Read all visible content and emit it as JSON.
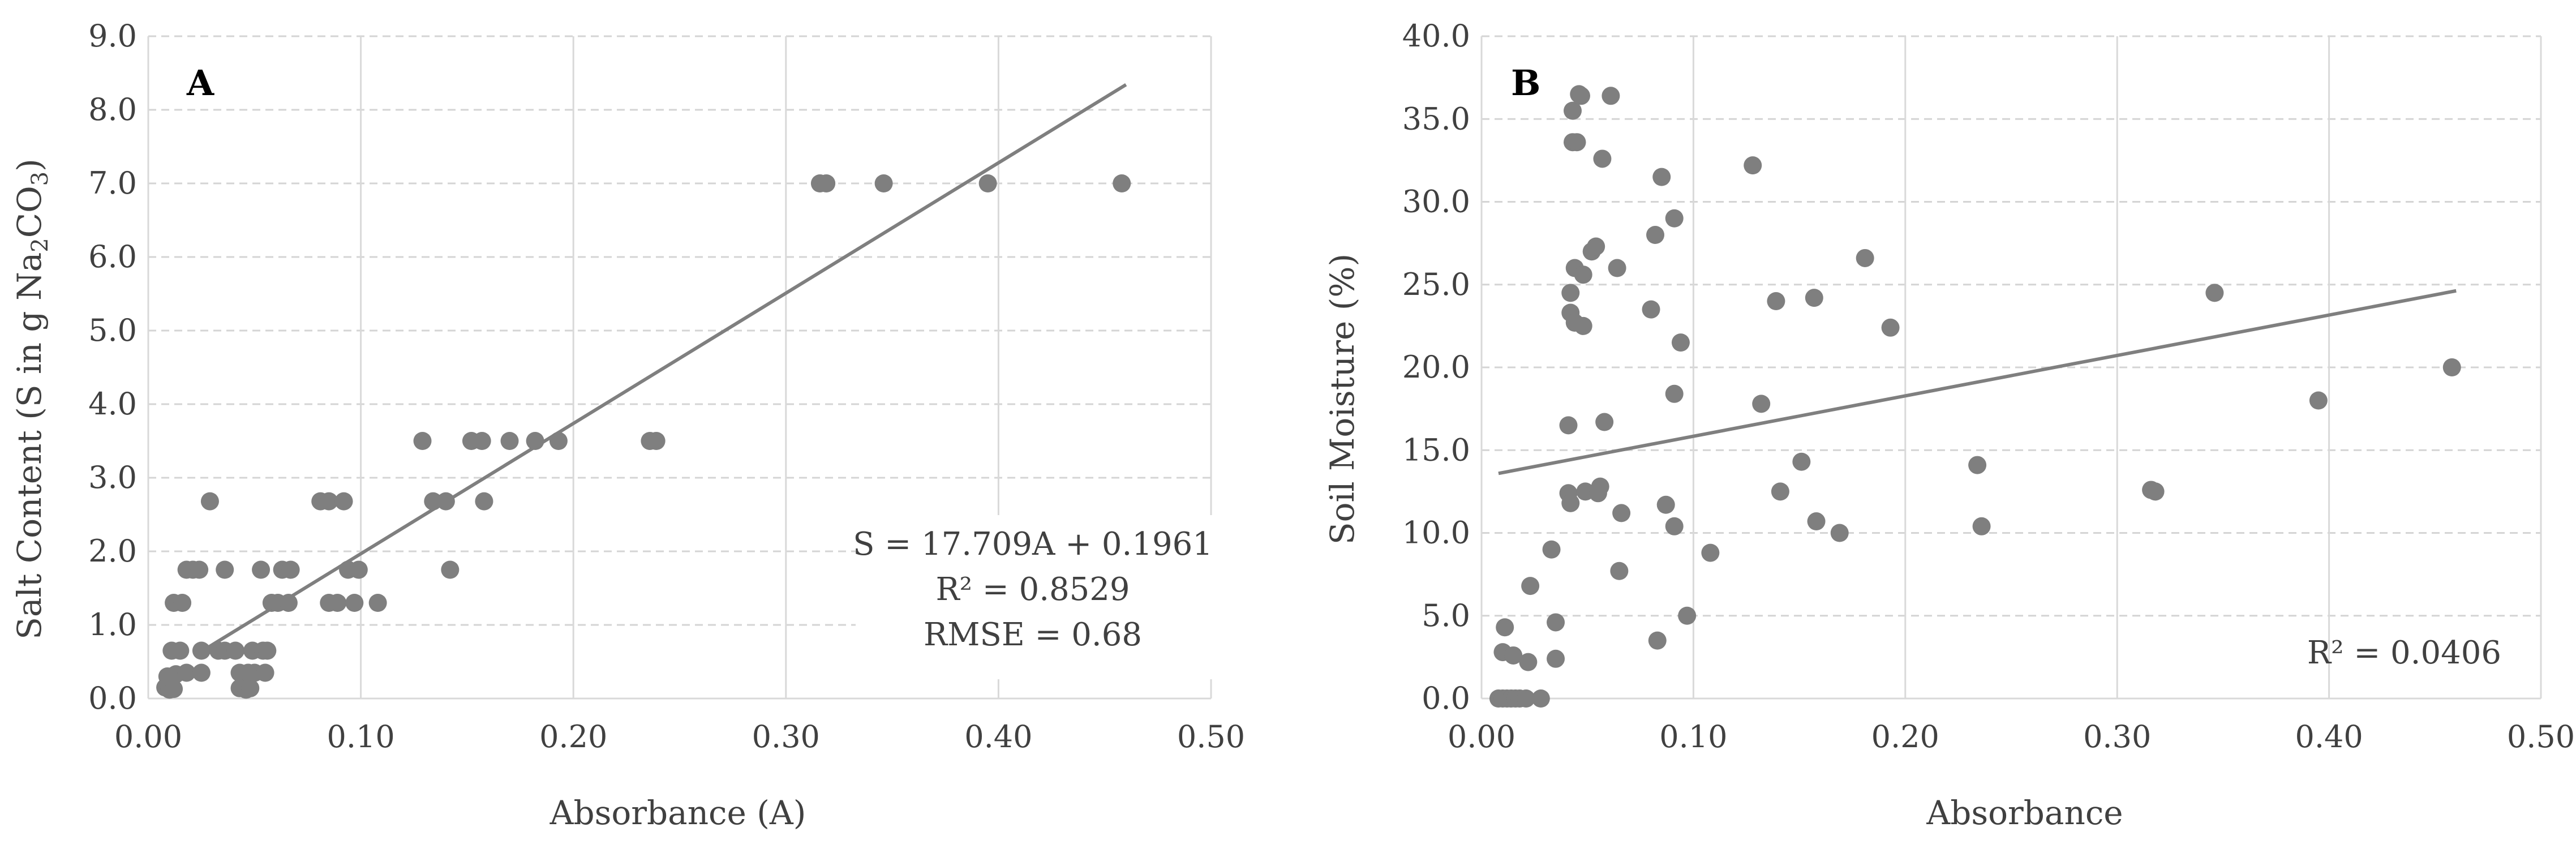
{
  "colors": {
    "points": "#7f7f7f",
    "trend": "#7f7f7f",
    "hgrid": "#d4d4d4",
    "vgrid": "#d9d9d9",
    "text": "#404040"
  },
  "chart_data": [
    {
      "type": "scatter",
      "panel_label": "A",
      "xlabel": "Absorbance (A)",
      "ylabel": {
        "prefix": "Salt Content (S in g Na",
        "sub1": "2",
        "mid": "CO",
        "sub2": "3",
        "suffix": ")"
      },
      "xlim": [
        0,
        0.5
      ],
      "ylim": [
        0,
        9
      ],
      "x_ticks": [
        0,
        0.1,
        0.2,
        0.3,
        0.4,
        0.5
      ],
      "y_ticks": [
        0,
        1,
        2,
        3,
        4,
        5,
        6,
        7,
        8,
        9
      ],
      "x_tick_labels": [
        "0.00",
        "0.10",
        "0.20",
        "0.30",
        "0.40",
        "0.50"
      ],
      "y_tick_labels": [
        "0.0",
        "1.0",
        "2.0",
        "3.0",
        "4.0",
        "5.0",
        "6.0",
        "7.0",
        "8.0",
        "9.0"
      ],
      "grid": {
        "vertical": "solid",
        "horizontal": "dashed"
      },
      "trendline": {
        "type": "linear",
        "slope": 17.709,
        "intercept": 0.1961,
        "x_range": [
          0.0235,
          0.46
        ]
      },
      "annotations": [
        "S = 17.709A + 0.1961",
        "R² = 0.8529",
        "RMSE = 0.68"
      ],
      "annotation_position": "right, mid-lower",
      "points": [
        [
          0.008,
          0.15
        ],
        [
          0.01,
          0.12
        ],
        [
          0.012,
          0.13
        ],
        [
          0.009,
          0.3
        ],
        [
          0.013,
          0.33
        ],
        [
          0.011,
          0.65
        ],
        [
          0.015,
          0.65
        ],
        [
          0.012,
          1.3
        ],
        [
          0.016,
          1.3
        ],
        [
          0.018,
          0.35
        ],
        [
          0.018,
          1.75
        ],
        [
          0.021,
          1.75
        ],
        [
          0.024,
          1.75
        ],
        [
          0.025,
          0.65
        ],
        [
          0.025,
          0.35
        ],
        [
          0.029,
          2.68
        ],
        [
          0.033,
          0.65
        ],
        [
          0.036,
          0.65
        ],
        [
          0.036,
          1.75
        ],
        [
          0.041,
          0.65
        ],
        [
          0.043,
          0.35
        ],
        [
          0.043,
          0.14
        ],
        [
          0.046,
          0.12
        ],
        [
          0.047,
          0.35
        ],
        [
          0.048,
          0.14
        ],
        [
          0.049,
          0.65
        ],
        [
          0.05,
          0.35
        ],
        [
          0.053,
          1.75
        ],
        [
          0.054,
          0.65
        ],
        [
          0.055,
          0.35
        ],
        [
          0.056,
          0.65
        ],
        [
          0.058,
          1.3
        ],
        [
          0.061,
          1.3
        ],
        [
          0.063,
          1.75
        ],
        [
          0.066,
          1.3
        ],
        [
          0.067,
          1.75
        ],
        [
          0.081,
          2.68
        ],
        [
          0.085,
          2.68
        ],
        [
          0.085,
          1.3
        ],
        [
          0.089,
          1.3
        ],
        [
          0.092,
          2.68
        ],
        [
          0.094,
          1.75
        ],
        [
          0.097,
          1.3
        ],
        [
          0.099,
          1.75
        ],
        [
          0.108,
          1.3
        ],
        [
          0.129,
          3.5
        ],
        [
          0.134,
          2.68
        ],
        [
          0.14,
          2.68
        ],
        [
          0.142,
          1.75
        ],
        [
          0.152,
          3.5
        ],
        [
          0.157,
          3.5
        ],
        [
          0.158,
          2.68
        ],
        [
          0.17,
          3.5
        ],
        [
          0.182,
          3.5
        ],
        [
          0.193,
          3.5
        ],
        [
          0.236,
          3.5
        ],
        [
          0.239,
          3.5
        ],
        [
          0.316,
          7.0
        ],
        [
          0.319,
          7.0
        ],
        [
          0.346,
          7.0
        ],
        [
          0.395,
          7.0
        ],
        [
          0.458,
          7.0
        ]
      ]
    },
    {
      "type": "scatter",
      "panel_label": "B",
      "xlabel": "Absorbance",
      "ylabel": "Soil Moisture (%)",
      "xlim": [
        0,
        0.5
      ],
      "ylim": [
        0,
        40
      ],
      "x_ticks": [
        0,
        0.1,
        0.2,
        0.3,
        0.4,
        0.5
      ],
      "y_ticks": [
        0,
        5,
        10,
        15,
        20,
        25,
        30,
        35,
        40
      ],
      "x_tick_labels": [
        "0.00",
        "0.10",
        "0.20",
        "0.30",
        "0.40",
        "0.50"
      ],
      "y_tick_labels": [
        "0.0",
        "5.0",
        "10.0",
        "15.0",
        "20.0",
        "25.0",
        "30.0",
        "35.0",
        "40.0"
      ],
      "grid": {
        "vertical": "solid",
        "horizontal": "dashed"
      },
      "trendline": {
        "type": "linear",
        "slope": 24.4,
        "intercept": 13.4,
        "x_range": [
          0.008,
          0.46
        ]
      },
      "annotations": [
        "R² = 0.0406"
      ],
      "annotation_position": "bottom-right",
      "points": [
        [
          0.008,
          0.0
        ],
        [
          0.01,
          0.0
        ],
        [
          0.012,
          0.0
        ],
        [
          0.014,
          0.0
        ],
        [
          0.016,
          0.0
        ],
        [
          0.018,
          0.0
        ],
        [
          0.021,
          0.0
        ],
        [
          0.028,
          0.0
        ],
        [
          0.01,
          2.8
        ],
        [
          0.011,
          4.3
        ],
        [
          0.015,
          2.6
        ],
        [
          0.022,
          2.2
        ],
        [
          0.023,
          6.8
        ],
        [
          0.033,
          9.0
        ],
        [
          0.035,
          4.6
        ],
        [
          0.035,
          2.4
        ],
        [
          0.041,
          16.5
        ],
        [
          0.041,
          12.4
        ],
        [
          0.042,
          11.8
        ],
        [
          0.042,
          24.5
        ],
        [
          0.042,
          23.3
        ],
        [
          0.043,
          35.5
        ],
        [
          0.043,
          33.6
        ],
        [
          0.044,
          26.0
        ],
        [
          0.044,
          22.7
        ],
        [
          0.045,
          33.6
        ],
        [
          0.046,
          36.5
        ],
        [
          0.047,
          36.4
        ],
        [
          0.048,
          25.6
        ],
        [
          0.048,
          22.5
        ],
        [
          0.049,
          12.5
        ],
        [
          0.052,
          27.0
        ],
        [
          0.054,
          27.3
        ],
        [
          0.055,
          12.4
        ],
        [
          0.056,
          12.8
        ],
        [
          0.057,
          32.6
        ],
        [
          0.058,
          16.7
        ],
        [
          0.061,
          36.4
        ],
        [
          0.064,
          26.0
        ],
        [
          0.065,
          7.7
        ],
        [
          0.066,
          11.2
        ],
        [
          0.08,
          23.5
        ],
        [
          0.082,
          28.0
        ],
        [
          0.083,
          3.5
        ],
        [
          0.085,
          31.5
        ],
        [
          0.087,
          11.7
        ],
        [
          0.091,
          10.4
        ],
        [
          0.091,
          29.0
        ],
        [
          0.091,
          18.4
        ],
        [
          0.094,
          21.5
        ],
        [
          0.097,
          5.0
        ],
        [
          0.108,
          8.8
        ],
        [
          0.128,
          32.2
        ],
        [
          0.132,
          17.8
        ],
        [
          0.139,
          24.0
        ],
        [
          0.141,
          12.5
        ],
        [
          0.151,
          14.3
        ],
        [
          0.157,
          24.2
        ],
        [
          0.158,
          10.7
        ],
        [
          0.169,
          10.0
        ],
        [
          0.181,
          26.6
        ],
        [
          0.193,
          22.4
        ],
        [
          0.234,
          14.1
        ],
        [
          0.236,
          10.4
        ],
        [
          0.316,
          12.6
        ],
        [
          0.318,
          12.5
        ],
        [
          0.346,
          24.5
        ],
        [
          0.395,
          18.0
        ],
        [
          0.458,
          20.0
        ]
      ]
    }
  ]
}
